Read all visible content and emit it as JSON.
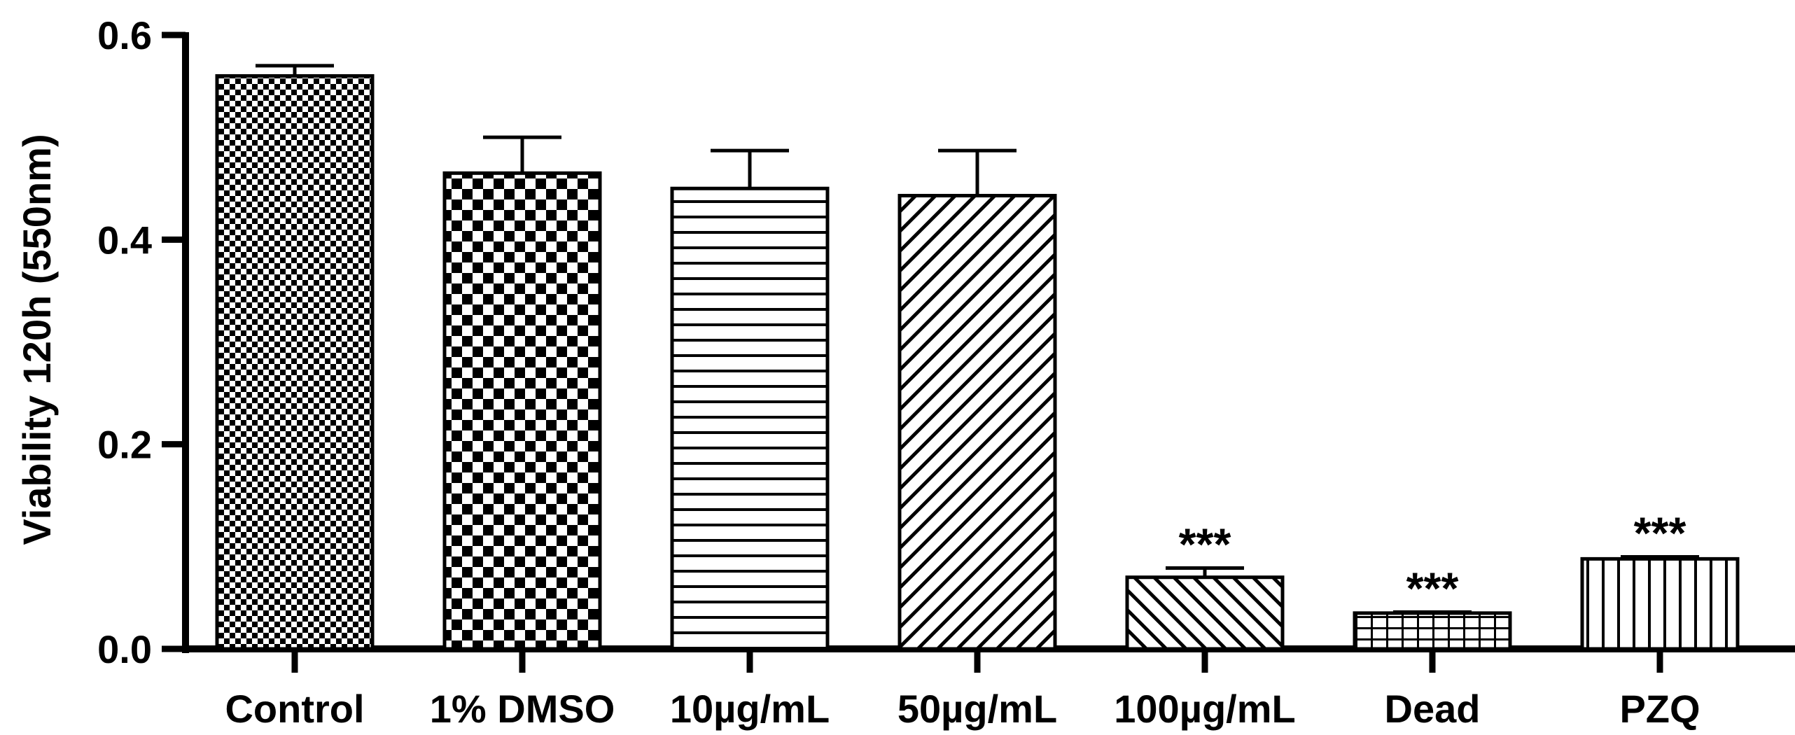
{
  "chart_data": {
    "type": "bar",
    "title": "",
    "xlabel": "",
    "ylabel": "Viability 120h (550nm)",
    "ylim": [
      0,
      0.6
    ],
    "yticks": [
      "0.0",
      "0.2",
      "0.4",
      "0.6"
    ],
    "grid": false,
    "legend": "none",
    "categories": [
      "Control",
      "1% DMSO",
      "10µg/mL",
      "50µg/mL",
      "100µg/mL",
      "Dead",
      "PZQ"
    ],
    "values": [
      0.56,
      0.465,
      0.45,
      0.443,
      0.07,
      0.035,
      0.088
    ],
    "error_upper": [
      0.57,
      0.5,
      0.487,
      0.487,
      0.079,
      0.036,
      0.09
    ],
    "annotations": [
      "",
      "",
      "",
      "",
      "***",
      "***",
      "***"
    ],
    "fill_patterns": [
      "fine-checker",
      "coarse-checker",
      "horizontal-lines",
      "diagonal-lines",
      "reverse-diagonal-lines",
      "grid",
      "vertical-lines"
    ],
    "colors": {
      "bar_fill": "#ffffff",
      "ink": "#000000"
    }
  }
}
